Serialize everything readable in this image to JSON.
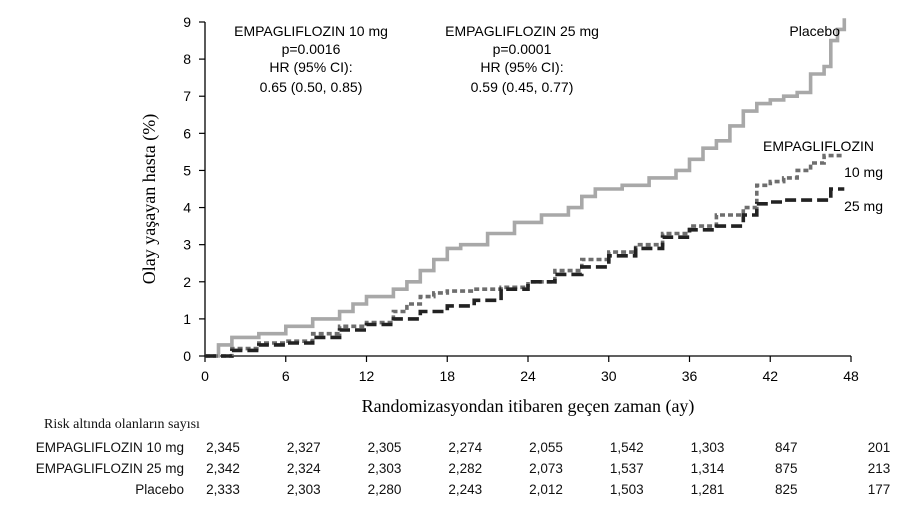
{
  "chart_data": {
    "type": "line",
    "xlabel": "Randomizasyondan itibaren geçen zaman (ay)",
    "ylabel": "Olay yaşayan hasta (%)",
    "xlim": [
      0,
      48
    ],
    "ylim": [
      0,
      9
    ],
    "x_ticks": [
      0,
      6,
      12,
      18,
      24,
      30,
      36,
      42,
      48
    ],
    "y_ticks": [
      0,
      1,
      2,
      3,
      4,
      5,
      6,
      7,
      8,
      9
    ],
    "grid": false,
    "series": [
      {
        "name": "Placebo",
        "color": "#a8a8a8",
        "style": "solid",
        "points": [
          [
            0,
            0
          ],
          [
            1,
            0.3
          ],
          [
            2,
            0.5
          ],
          [
            4,
            0.6
          ],
          [
            6,
            0.8
          ],
          [
            8,
            1.0
          ],
          [
            10,
            1.2
          ],
          [
            11,
            1.4
          ],
          [
            12,
            1.6
          ],
          [
            14,
            1.8
          ],
          [
            15,
            2.0
          ],
          [
            16,
            2.3
          ],
          [
            17,
            2.6
          ],
          [
            18,
            2.9
          ],
          [
            19,
            3.0
          ],
          [
            21,
            3.3
          ],
          [
            23,
            3.6
          ],
          [
            25,
            3.8
          ],
          [
            27,
            4.0
          ],
          [
            28,
            4.3
          ],
          [
            29,
            4.5
          ],
          [
            31,
            4.6
          ],
          [
            33,
            4.8
          ],
          [
            35,
            5.0
          ],
          [
            36,
            5.3
          ],
          [
            37,
            5.6
          ],
          [
            38,
            5.8
          ],
          [
            39,
            6.2
          ],
          [
            40,
            6.6
          ],
          [
            41,
            6.8
          ],
          [
            42,
            6.9
          ],
          [
            43,
            7.0
          ],
          [
            44,
            7.1
          ],
          [
            45,
            7.6
          ],
          [
            46,
            7.8
          ],
          [
            46.5,
            8.5
          ],
          [
            47,
            8.8
          ],
          [
            47.5,
            9.1
          ]
        ]
      },
      {
        "name": "EMPAGLIFLOZIN 10 mg",
        "color": "#6e6e6e",
        "style": "dotted",
        "points": [
          [
            0,
            0
          ],
          [
            2,
            0.2
          ],
          [
            4,
            0.35
          ],
          [
            6,
            0.4
          ],
          [
            8,
            0.6
          ],
          [
            10,
            0.8
          ],
          [
            12,
            0.9
          ],
          [
            14,
            1.2
          ],
          [
            15,
            1.4
          ],
          [
            16,
            1.6
          ],
          [
            17,
            1.7
          ],
          [
            18,
            1.75
          ],
          [
            20,
            1.8
          ],
          [
            22,
            1.85
          ],
          [
            24,
            2.0
          ],
          [
            26,
            2.3
          ],
          [
            28,
            2.6
          ],
          [
            30,
            2.8
          ],
          [
            32,
            3.0
          ],
          [
            34,
            3.3
          ],
          [
            36,
            3.5
          ],
          [
            38,
            3.8
          ],
          [
            40,
            4.0
          ],
          [
            41,
            4.6
          ],
          [
            42,
            4.7
          ],
          [
            43,
            4.8
          ],
          [
            44,
            5.0
          ],
          [
            45,
            5.2
          ],
          [
            46,
            5.4
          ],
          [
            47.5,
            5.4
          ]
        ]
      },
      {
        "name": "EMPAGLIFLOZIN 25 mg",
        "color": "#222222",
        "style": "dashed",
        "points": [
          [
            0,
            0
          ],
          [
            2,
            0.15
          ],
          [
            4,
            0.3
          ],
          [
            6,
            0.35
          ],
          [
            8,
            0.5
          ],
          [
            10,
            0.7
          ],
          [
            12,
            0.85
          ],
          [
            14,
            1.0
          ],
          [
            16,
            1.2
          ],
          [
            18,
            1.35
          ],
          [
            20,
            1.5
          ],
          [
            22,
            1.8
          ],
          [
            24,
            2.0
          ],
          [
            26,
            2.2
          ],
          [
            28,
            2.4
          ],
          [
            30,
            2.7
          ],
          [
            32,
            2.9
          ],
          [
            34,
            3.2
          ],
          [
            36,
            3.4
          ],
          [
            38,
            3.5
          ],
          [
            40,
            3.8
          ],
          [
            41,
            4.1
          ],
          [
            42,
            4.15
          ],
          [
            43,
            4.2
          ],
          [
            44,
            4.2
          ],
          [
            46.5,
            4.2
          ],
          [
            46.5,
            4.5
          ],
          [
            47.5,
            4.5
          ]
        ]
      }
    ],
    "annotations": {
      "emp10": {
        "title": "EMPAGLIFLOZIN 10 mg",
        "p": "p=0.0016",
        "hr_label": "HR (95% CI):",
        "hr_value": "0.65 (0.50, 0.85)"
      },
      "emp25": {
        "title": "EMPAGLIFLOZIN 25 mg",
        "p": "p=0.0001",
        "hr_label": "HR (95% CI):",
        "hr_value": "0.59 (0.45, 0.77)"
      },
      "placebo_label": "Placebo",
      "empa_label": "EMPAGLIFLOZIN",
      "dose10_label": "10 mg",
      "dose25_label": "25 mg"
    }
  },
  "risk_table": {
    "title": "Risk altında olanların sayısı",
    "time_points": [
      0,
      6,
      12,
      18,
      24,
      30,
      36,
      42,
      48
    ],
    "rows": [
      {
        "label": "EMPAGLIFLOZIN 10 mg",
        "values": [
          "2,345",
          "2,327",
          "2,305",
          "2,274",
          "2,055",
          "1,542",
          "1,303",
          "847",
          "201"
        ]
      },
      {
        "label": "EMPAGLIFLOZIN 25 mg",
        "values": [
          "2,342",
          "2,324",
          "2,303",
          "2,282",
          "2,073",
          "1,537",
          "1,314",
          "875",
          "213"
        ]
      },
      {
        "label": "Placebo",
        "values": [
          "2,333",
          "2,303",
          "2,280",
          "2,243",
          "2,012",
          "1,503",
          "1,281",
          "825",
          "177"
        ]
      }
    ]
  }
}
